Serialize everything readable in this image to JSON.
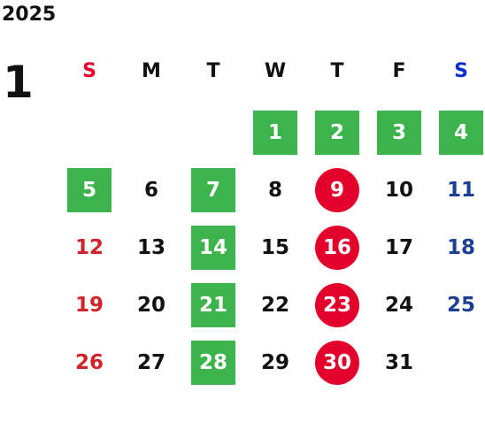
{
  "calendar": {
    "year": "2025",
    "month": "1",
    "weekdays": [
      {
        "label": "S",
        "color": "#e3002b"
      },
      {
        "label": "M",
        "color": "#111111"
      },
      {
        "label": "T",
        "color": "#111111"
      },
      {
        "label": "W",
        "color": "#111111"
      },
      {
        "label": "T",
        "color": "#111111"
      },
      {
        "label": "F",
        "color": "#111111"
      },
      {
        "label": "S",
        "color": "#0a2ed1"
      }
    ],
    "days": [
      {
        "day": "1",
        "week": 0,
        "weekday": 3,
        "style": "green"
      },
      {
        "day": "2",
        "week": 0,
        "weekday": 4,
        "style": "green"
      },
      {
        "day": "3",
        "week": 0,
        "weekday": 5,
        "style": "green"
      },
      {
        "day": "4",
        "week": 0,
        "weekday": 6,
        "style": "green"
      },
      {
        "day": "5",
        "week": 1,
        "weekday": 0,
        "style": "green"
      },
      {
        "day": "6",
        "week": 1,
        "weekday": 1,
        "style": "plain"
      },
      {
        "day": "7",
        "week": 1,
        "weekday": 2,
        "style": "green"
      },
      {
        "day": "8",
        "week": 1,
        "weekday": 3,
        "style": "plain"
      },
      {
        "day": "9",
        "week": 1,
        "weekday": 4,
        "style": "circle"
      },
      {
        "day": "10",
        "week": 1,
        "weekday": 5,
        "style": "plain"
      },
      {
        "day": "11",
        "week": 1,
        "weekday": 6,
        "style": "sat"
      },
      {
        "day": "12",
        "week": 2,
        "weekday": 0,
        "style": "sun"
      },
      {
        "day": "13",
        "week": 2,
        "weekday": 1,
        "style": "plain"
      },
      {
        "day": "14",
        "week": 2,
        "weekday": 2,
        "style": "green"
      },
      {
        "day": "15",
        "week": 2,
        "weekday": 3,
        "style": "plain"
      },
      {
        "day": "16",
        "week": 2,
        "weekday": 4,
        "style": "circle"
      },
      {
        "day": "17",
        "week": 2,
        "weekday": 5,
        "style": "plain"
      },
      {
        "day": "18",
        "week": 2,
        "weekday": 6,
        "style": "sat"
      },
      {
        "day": "19",
        "week": 3,
        "weekday": 0,
        "style": "sun"
      },
      {
        "day": "20",
        "week": 3,
        "weekday": 1,
        "style": "plain"
      },
      {
        "day": "21",
        "week": 3,
        "weekday": 2,
        "style": "green"
      },
      {
        "day": "22",
        "week": 3,
        "weekday": 3,
        "style": "plain"
      },
      {
        "day": "23",
        "week": 3,
        "weekday": 4,
        "style": "circle"
      },
      {
        "day": "24",
        "week": 3,
        "weekday": 5,
        "style": "plain"
      },
      {
        "day": "25",
        "week": 3,
        "weekday": 6,
        "style": "sat"
      },
      {
        "day": "26",
        "week": 4,
        "weekday": 0,
        "style": "sun"
      },
      {
        "day": "27",
        "week": 4,
        "weekday": 1,
        "style": "plain"
      },
      {
        "day": "28",
        "week": 4,
        "weekday": 2,
        "style": "green"
      },
      {
        "day": "29",
        "week": 4,
        "weekday": 3,
        "style": "plain"
      },
      {
        "day": "30",
        "week": 4,
        "weekday": 4,
        "style": "circle"
      },
      {
        "day": "31",
        "week": 4,
        "weekday": 5,
        "style": "plain"
      }
    ],
    "colors": {
      "highlight_green": "#3cb44b",
      "highlight_red": "#e3002b",
      "sunday_text": "#d2232a",
      "saturday_text": "#1c3f94"
    }
  }
}
